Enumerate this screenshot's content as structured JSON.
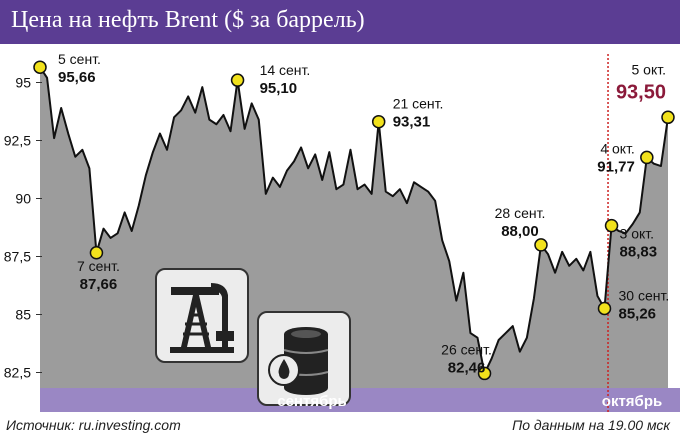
{
  "header": {
    "title": "Цена на нефть Brent ($ за баррель)"
  },
  "footer": {
    "source": "Источник: ru.investing.com",
    "note": "По данным на 19.00 мск"
  },
  "colors": {
    "header_bg": "#5b3d93",
    "band_bg": "#9a87c4",
    "area_fill": "#9c9c9c",
    "line": "#111111",
    "marker": "#f2e21c",
    "divider": "#cc2222",
    "highlight": "#8b1a3a"
  },
  "icons": [
    "oil-pump-icon",
    "oil-barrel-icon"
  ],
  "chart_data": {
    "type": "area",
    "ylim": [
      82,
      96.5
    ],
    "yticks": [
      95,
      92.5,
      90,
      87.5,
      85,
      82.5
    ],
    "ytick_labels": [
      "95",
      "92,5",
      "90",
      "87,5",
      "85",
      "82,5"
    ],
    "month_labels": [
      "сентябрь",
      "октябрь"
    ],
    "grid": false,
    "legend": "none",
    "values": [
      95.66,
      95.2,
      92.6,
      93.9,
      92.8,
      91.8,
      92.1,
      91.3,
      87.66,
      88.7,
      88.3,
      88.5,
      89.4,
      88.6,
      89.7,
      91.0,
      92.0,
      92.8,
      92.1,
      93.5,
      93.8,
      94.4,
      93.7,
      94.8,
      93.4,
      93.2,
      93.6,
      92.9,
      95.1,
      93.0,
      94.1,
      93.4,
      90.2,
      90.9,
      90.5,
      91.2,
      91.6,
      92.2,
      91.3,
      91.9,
      90.8,
      92.0,
      90.4,
      90.6,
      92.1,
      90.4,
      90.6,
      90.2,
      93.31,
      90.3,
      90.1,
      90.4,
      89.8,
      90.7,
      90.5,
      90.3,
      89.9,
      88.2,
      87.3,
      85.6,
      86.8,
      84.2,
      84.0,
      82.46,
      83.1,
      83.9,
      84.2,
      84.5,
      83.4,
      84.0,
      85.7,
      88.0,
      87.6,
      86.8,
      87.7,
      87.1,
      87.4,
      86.9,
      87.7,
      85.8,
      85.26,
      88.83,
      88.6,
      88.5,
      88.9,
      89.4,
      91.77,
      91.5,
      91.4,
      93.5
    ],
    "callouts": [
      {
        "index": 0,
        "date": "5 сент.",
        "value": "95,66"
      },
      {
        "index": 8,
        "date": "7 сент.",
        "value": "87,66"
      },
      {
        "index": 28,
        "date": "14 сент.",
        "value": "95,10"
      },
      {
        "index": 48,
        "date": "21 сент.",
        "value": "93,31"
      },
      {
        "index": 63,
        "date": "26 сент.",
        "value": "82,46"
      },
      {
        "index": 71,
        "date": "28 сент.",
        "value": "88,00"
      },
      {
        "index": 80,
        "date": "30 сент.",
        "value": "85,26"
      },
      {
        "index": 81,
        "date": "3 окт.",
        "value": "88,83"
      },
      {
        "index": 86,
        "date": "4 окт.",
        "value": "91,77"
      },
      {
        "index": 89,
        "date": "5 окт.",
        "value": "93,50"
      }
    ],
    "october_start_index": 80.5
  }
}
